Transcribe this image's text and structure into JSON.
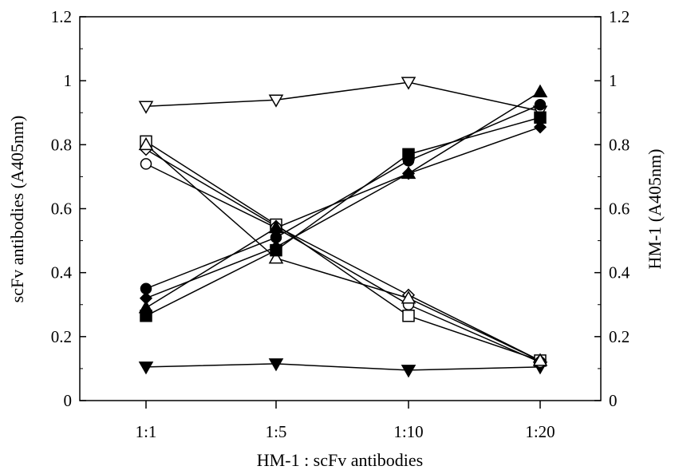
{
  "chart_data": {
    "type": "line",
    "xlabel": "HM-1 : scFv antibodies",
    "ylabel_left": "scFv antibodies (A405nm)",
    "ylabel_right": "HM-1 (A405nm)",
    "categories": [
      "1:1",
      "1:5",
      "1:10",
      "1:20"
    ],
    "ylim": [
      0,
      1.2
    ],
    "yticks": [
      "0",
      "0.2",
      "0.4",
      "0.6",
      "0.8",
      "1",
      "1.2"
    ],
    "ytick_values": [
      0,
      0.2,
      0.4,
      0.6,
      0.8,
      1.0,
      1.2
    ],
    "ylim_right": [
      0,
      1.2
    ],
    "yticks_right": [
      "0",
      "0.2",
      "0.4",
      "0.6",
      "0.8",
      "1",
      "1.2"
    ],
    "grid": false,
    "series": [
      {
        "marker": "triangle-down-open",
        "values": [
          0.92,
          0.94,
          0.995,
          0.905
        ]
      },
      {
        "marker": "triangle-down-filled",
        "values": [
          0.105,
          0.115,
          0.095,
          0.105
        ]
      },
      {
        "marker": "square-open",
        "values": [
          0.81,
          0.55,
          0.265,
          0.125
        ]
      },
      {
        "marker": "diamond-open",
        "values": [
          0.785,
          0.545,
          0.33,
          0.125
        ]
      },
      {
        "marker": "circle-open",
        "values": [
          0.74,
          0.54,
          0.3,
          0.12
        ]
      },
      {
        "marker": "triangle-up-open",
        "values": [
          0.8,
          0.445,
          0.32,
          0.125
        ]
      },
      {
        "marker": "circle-filled",
        "values": [
          0.35,
          0.51,
          0.75,
          0.925
        ]
      },
      {
        "marker": "diamond-filled",
        "values": [
          0.32,
          0.48,
          0.71,
          0.855
        ]
      },
      {
        "marker": "triangle-up-filled",
        "values": [
          0.29,
          0.54,
          0.71,
          0.965
        ]
      },
      {
        "marker": "square-filled",
        "values": [
          0.265,
          0.47,
          0.77,
          0.885
        ]
      }
    ]
  }
}
